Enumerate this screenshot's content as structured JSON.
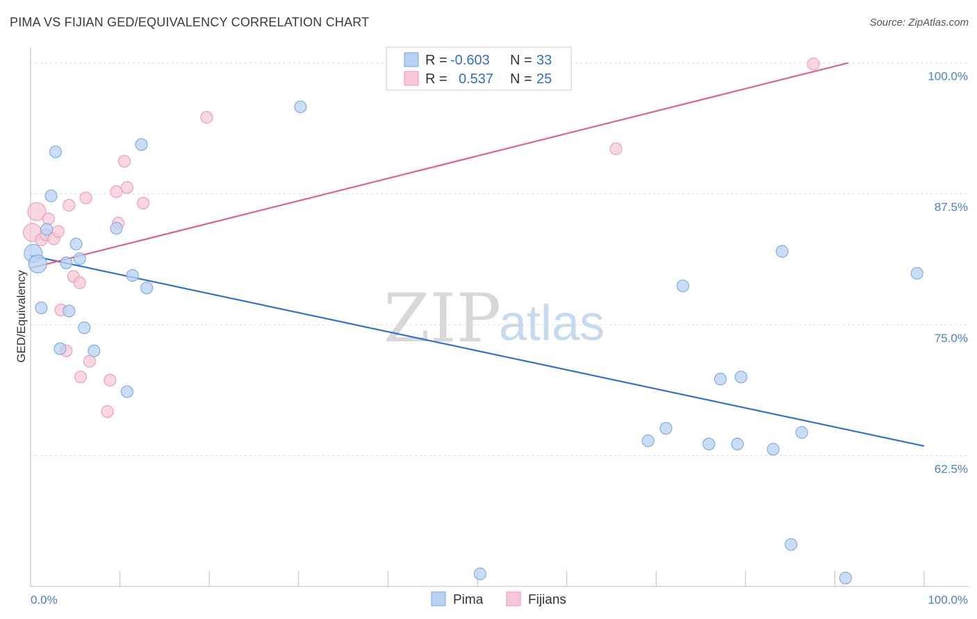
{
  "header": {
    "title": "PIMA VS FIJIAN GED/EQUIVALENCY CORRELATION CHART",
    "source": "Source: ZipAtlas.com"
  },
  "colors": {
    "pima_fill": "#b8d1f3",
    "pima_stroke": "#7ba6e0",
    "pima_line": "#2d72d2",
    "fijian_fill": "#f7c9d6",
    "fijian_stroke": "#ec9ab3",
    "fijian_line": "#e0628a",
    "grid": "#d9d9d9",
    "tick_text": "#4a7fc8"
  },
  "legend": {
    "rows": [
      {
        "r_label": "R =",
        "r_value": "-0.603",
        "n_label": "N =",
        "n_value": "33"
      },
      {
        "r_label": "R =",
        "r_value": "0.537",
        "n_label": "N =",
        "n_value": "25"
      }
    ]
  },
  "bottom_legend": {
    "items": [
      "Pima",
      "Fijians"
    ]
  },
  "watermark": {
    "zip": "ZIP",
    "atlas": "atlas"
  },
  "chart_data": {
    "type": "scatter",
    "title": "PIMA VS FIJIAN GED/EQUIVALENCY CORRELATION CHART",
    "xlabel": "",
    "ylabel": "GED/Equivalency",
    "xlim": [
      0,
      100
    ],
    "ylim": [
      50,
      101.5
    ],
    "x_tick_labels": [
      "0.0%",
      "100.0%"
    ],
    "y_ticks": [
      62.5,
      75.0,
      87.5,
      100.0
    ],
    "y_tick_labels": [
      "62.5%",
      "75.0%",
      "87.5%",
      "100.0%"
    ],
    "grid": true,
    "legend_position": "top-center",
    "series": [
      {
        "name": "Pima",
        "r": -0.603,
        "n": 33,
        "trend": {
          "x": [
            0,
            100
          ],
          "y": [
            81.6,
            63.4
          ]
        },
        "points": [
          {
            "x": 0.3,
            "y": 81.8
          },
          {
            "x": 0.8,
            "y": 80.8
          },
          {
            "x": 1.2,
            "y": 76.6
          },
          {
            "x": 1.8,
            "y": 84.1
          },
          {
            "x": 2.3,
            "y": 87.3
          },
          {
            "x": 2.8,
            "y": 91.5
          },
          {
            "x": 3.3,
            "y": 72.7
          },
          {
            "x": 4.0,
            "y": 80.9
          },
          {
            "x": 4.3,
            "y": 76.3
          },
          {
            "x": 5.1,
            "y": 82.7
          },
          {
            "x": 5.5,
            "y": 81.3
          },
          {
            "x": 6.0,
            "y": 74.7
          },
          {
            "x": 7.1,
            "y": 72.5
          },
          {
            "x": 9.6,
            "y": 84.2
          },
          {
            "x": 10.8,
            "y": 68.6
          },
          {
            "x": 11.4,
            "y": 79.7
          },
          {
            "x": 12.4,
            "y": 92.2
          },
          {
            "x": 13.0,
            "y": 78.5
          },
          {
            "x": 30.2,
            "y": 95.8
          },
          {
            "x": 50.3,
            "y": 51.2
          },
          {
            "x": 69.1,
            "y": 63.9
          },
          {
            "x": 71.1,
            "y": 65.1
          },
          {
            "x": 73.0,
            "y": 78.7
          },
          {
            "x": 75.9,
            "y": 63.6
          },
          {
            "x": 77.2,
            "y": 69.8
          },
          {
            "x": 79.1,
            "y": 63.6
          },
          {
            "x": 79.5,
            "y": 70.0
          },
          {
            "x": 83.1,
            "y": 63.1
          },
          {
            "x": 84.1,
            "y": 82.0
          },
          {
            "x": 85.1,
            "y": 54.0
          },
          {
            "x": 86.3,
            "y": 64.7
          },
          {
            "x": 91.2,
            "y": 50.8
          },
          {
            "x": 99.2,
            "y": 79.9
          }
        ]
      },
      {
        "name": "Fijians",
        "r": 0.537,
        "n": 25,
        "trend": {
          "x": [
            0,
            91.5
          ],
          "y": [
            80.4,
            100.0
          ]
        },
        "points": [
          {
            "x": 0.2,
            "y": 83.8
          },
          {
            "x": 0.7,
            "y": 85.8
          },
          {
            "x": 1.2,
            "y": 83.1
          },
          {
            "x": 1.7,
            "y": 83.6
          },
          {
            "x": 2.0,
            "y": 85.1
          },
          {
            "x": 2.6,
            "y": 83.2
          },
          {
            "x": 3.1,
            "y": 83.9
          },
          {
            "x": 3.4,
            "y": 76.4
          },
          {
            "x": 4.0,
            "y": 72.5
          },
          {
            "x": 4.3,
            "y": 86.4
          },
          {
            "x": 4.8,
            "y": 79.6
          },
          {
            "x": 5.5,
            "y": 79.0
          },
          {
            "x": 5.6,
            "y": 70.0
          },
          {
            "x": 6.2,
            "y": 87.1
          },
          {
            "x": 6.6,
            "y": 71.5
          },
          {
            "x": 8.6,
            "y": 66.7
          },
          {
            "x": 8.9,
            "y": 69.7
          },
          {
            "x": 9.6,
            "y": 87.7
          },
          {
            "x": 9.8,
            "y": 84.7
          },
          {
            "x": 10.5,
            "y": 90.6
          },
          {
            "x": 10.8,
            "y": 88.1
          },
          {
            "x": 12.6,
            "y": 86.6
          },
          {
            "x": 19.7,
            "y": 94.8
          },
          {
            "x": 65.5,
            "y": 91.8
          },
          {
            "x": 87.6,
            "y": 99.9
          }
        ]
      }
    ]
  }
}
